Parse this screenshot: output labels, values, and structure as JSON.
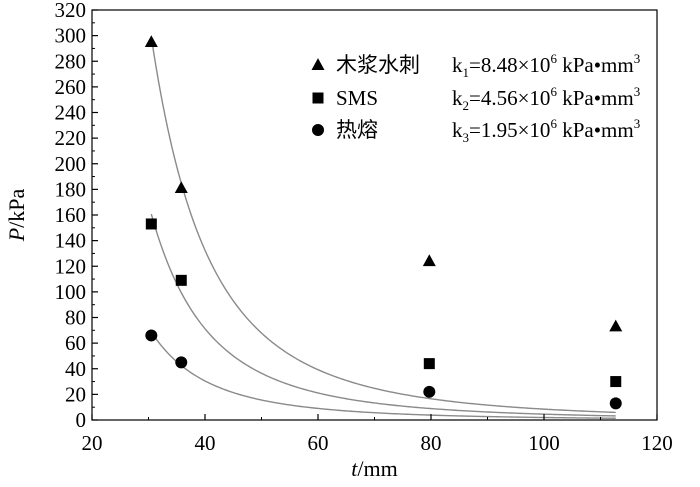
{
  "chart_data": {
    "type": "scatter",
    "xlabel_var": "t",
    "xlabel_unit": "/mm",
    "ylabel_var": "P",
    "ylabel_unit": "/kPa",
    "xlim": [
      20,
      120
    ],
    "ylim": [
      0,
      320
    ],
    "x_ticks": [
      20,
      40,
      60,
      80,
      100,
      120
    ],
    "y_ticks": [
      0,
      20,
      40,
      60,
      80,
      100,
      120,
      140,
      160,
      180,
      200,
      220,
      240,
      260,
      280,
      300,
      320
    ],
    "grid": false,
    "legend_position": "top-right",
    "series": [
      {
        "name": "木浆水刺",
        "marker": "triangle",
        "fit_label_base": "k",
        "fit_label_sub": "1",
        "fit_label_value": "=8.48×10",
        "fit_label_exp": "6",
        "fit_label_unit": " kPa•mm",
        "fit_label_unit_exp": "3",
        "k": 8480000,
        "x": [
          30.5,
          35.8,
          79.7,
          112.7
        ],
        "y": [
          295,
          181,
          124,
          73
        ]
      },
      {
        "name": "SMS",
        "marker": "square",
        "fit_label_base": "k",
        "fit_label_sub": "2",
        "fit_label_value": "=4.56×10",
        "fit_label_exp": "6",
        "fit_label_unit": " kPa•mm",
        "fit_label_unit_exp": "3",
        "k": 4560000,
        "x": [
          30.5,
          35.8,
          79.7,
          112.7
        ],
        "y": [
          153,
          109,
          44,
          30
        ]
      },
      {
        "name": "热熔",
        "marker": "circle",
        "fit_label_base": "k",
        "fit_label_sub": "3",
        "fit_label_value": "=1.95×10",
        "fit_label_exp": "6",
        "fit_label_unit": " kPa•mm",
        "fit_label_unit_exp": "3",
        "k": 1950000,
        "x": [
          30.5,
          35.8,
          79.7,
          112.7
        ],
        "y": [
          66,
          45,
          22,
          13
        ]
      }
    ],
    "fit_model": "P = k / t^3",
    "colors": {
      "marker": "#000000",
      "fit_line": "#8a8a8a",
      "axis": "#000000"
    }
  }
}
